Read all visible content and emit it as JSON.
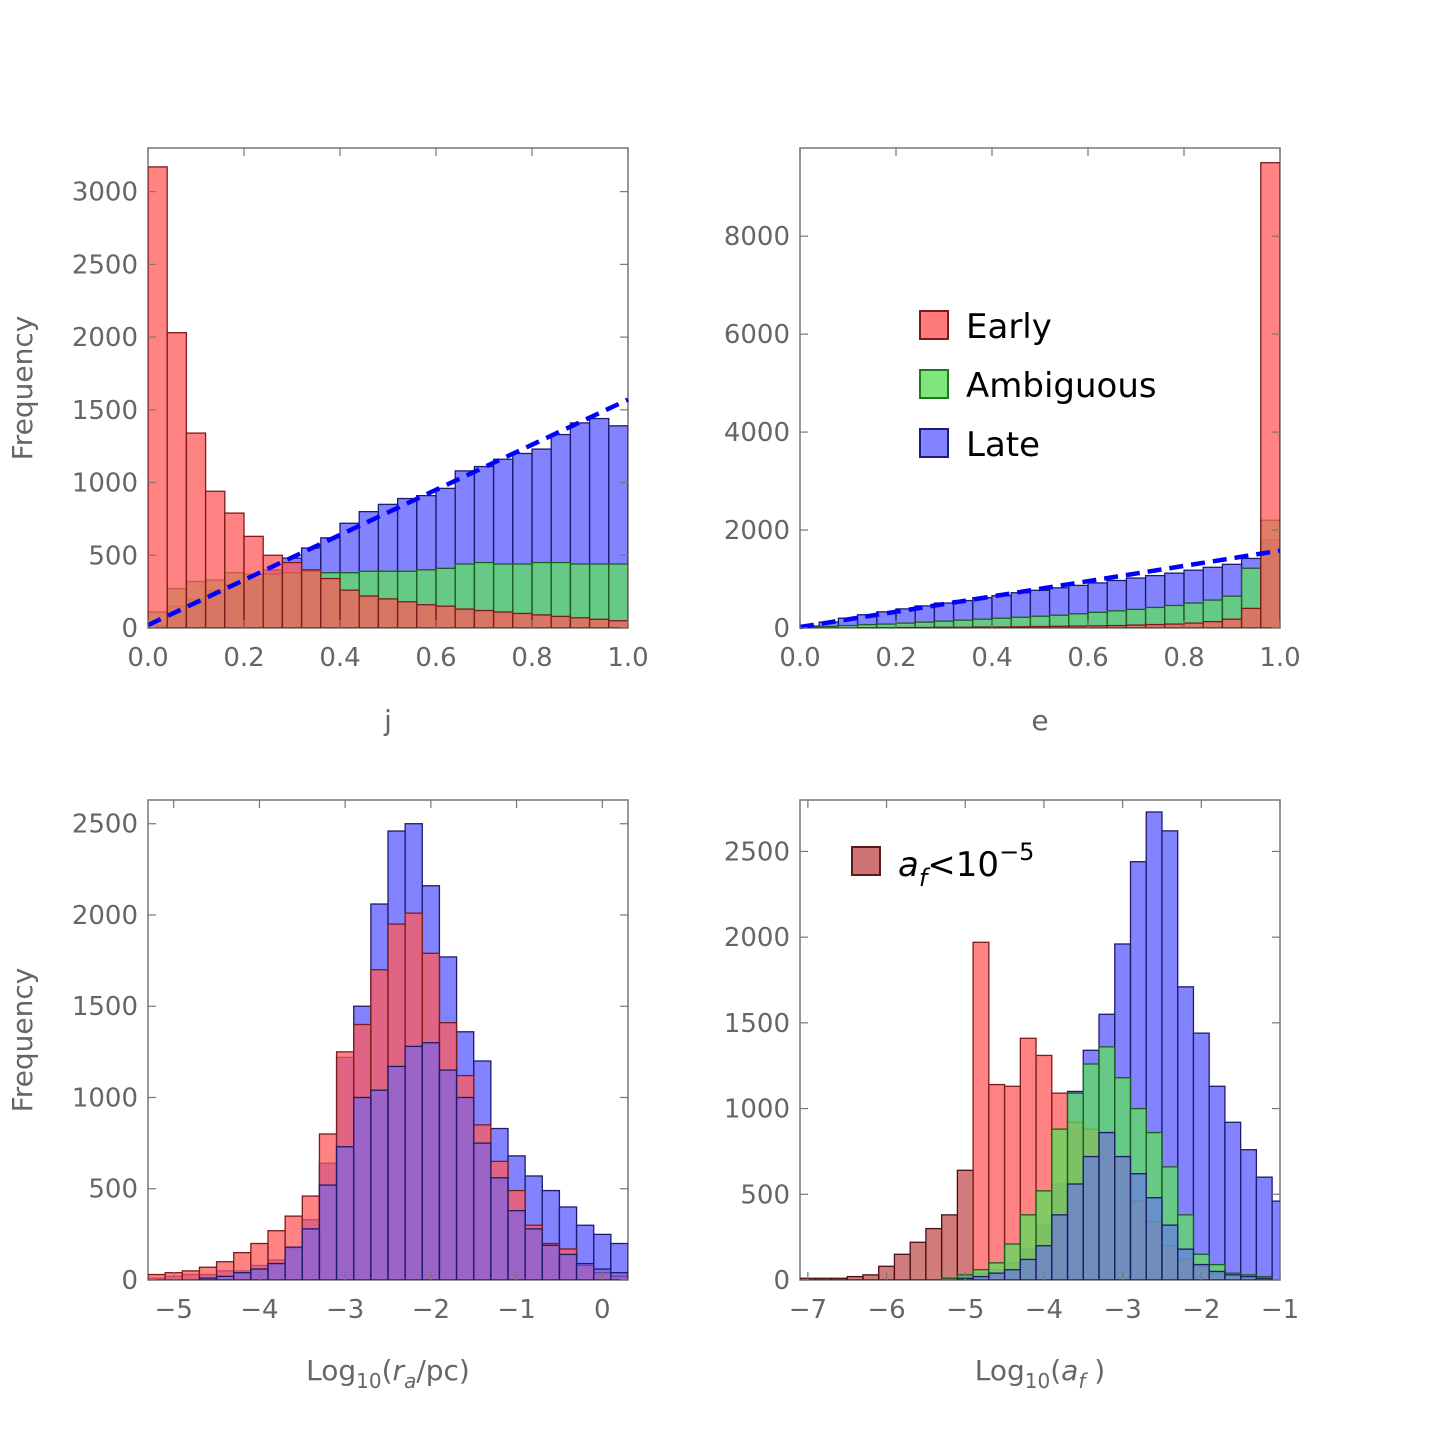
{
  "colors": {
    "early": "#ff5a5a",
    "ambiguous": "#5ce05c",
    "late": "#6464ff",
    "af_small": "#c05050",
    "dashed_fit": "#0000ff",
    "axes": "#777777"
  },
  "chart_data": [
    {
      "id": "j",
      "type": "bar",
      "xlabel": "j",
      "ylabel": "Frequency",
      "xlim": [
        0.0,
        1.0
      ],
      "ylim": [
        0,
        3300
      ],
      "xticks": [
        "0.0",
        "0.2",
        "0.4",
        "0.6",
        "0.8",
        "1.0"
      ],
      "yticks": [
        "0",
        "500",
        "1000",
        "1500",
        "2000",
        "2500",
        "3000"
      ],
      "bin_start": 0.0,
      "bin_width": 0.04,
      "series": [
        {
          "name": "Late",
          "color_key": "late",
          "values": [
            20,
            150,
            200,
            260,
            300,
            330,
            400,
            480,
            550,
            620,
            720,
            800,
            850,
            890,
            910,
            960,
            1080,
            1110,
            1160,
            1200,
            1230,
            1330,
            1410,
            1440,
            1390
          ]
        },
        {
          "name": "Ambiguous",
          "color_key": "ambiguous",
          "values": [
            110,
            270,
            320,
            330,
            380,
            370,
            370,
            380,
            390,
            380,
            380,
            390,
            390,
            390,
            400,
            410,
            440,
            450,
            440,
            440,
            450,
            450,
            440,
            440,
            440
          ]
        },
        {
          "name": "Early",
          "color_key": "early",
          "values": [
            3170,
            2030,
            1340,
            940,
            790,
            630,
            500,
            450,
            400,
            340,
            260,
            220,
            200,
            180,
            160,
            150,
            130,
            120,
            110,
            100,
            90,
            80,
            70,
            60,
            50
          ]
        }
      ],
      "fit_line": {
        "style": "dashed",
        "color_key": "dashed_fit",
        "x": [
          0.0,
          1.0
        ],
        "y": [
          20,
          1570
        ]
      }
    },
    {
      "id": "e",
      "type": "bar",
      "xlabel": "e",
      "ylabel": "",
      "xlim": [
        0.0,
        1.0
      ],
      "ylim": [
        0,
        9800
      ],
      "xticks": [
        "0.0",
        "0.2",
        "0.4",
        "0.6",
        "0.8",
        "1.0"
      ],
      "yticks": [
        "0",
        "2000",
        "4000",
        "6000",
        "8000"
      ],
      "bin_start": 0.0,
      "bin_width": 0.04,
      "series": [
        {
          "name": "Late",
          "color_key": "late",
          "values": [
            40,
            120,
            200,
            270,
            330,
            390,
            450,
            510,
            560,
            620,
            660,
            720,
            770,
            820,
            870,
            920,
            970,
            1020,
            1070,
            1120,
            1180,
            1240,
            1300,
            1420,
            1800
          ]
        },
        {
          "name": "Ambiguous",
          "color_key": "ambiguous",
          "values": [
            10,
            30,
            50,
            70,
            80,
            100,
            120,
            140,
            160,
            180,
            200,
            220,
            240,
            260,
            290,
            320,
            350,
            380,
            420,
            460,
            510,
            570,
            650,
            1220,
            2200
          ]
        },
        {
          "name": "Early",
          "color_key": "early",
          "values": [
            0,
            0,
            0,
            5,
            5,
            10,
            10,
            15,
            15,
            20,
            20,
            25,
            30,
            35,
            40,
            45,
            50,
            60,
            70,
            80,
            100,
            130,
            180,
            400,
            9500
          ]
        }
      ],
      "fit_line": {
        "style": "dashed",
        "color_key": "dashed_fit",
        "x": [
          0.0,
          1.0
        ],
        "y": [
          20,
          1580
        ]
      },
      "legend": {
        "position": "center",
        "entries": [
          {
            "label": "Early",
            "color_key": "early"
          },
          {
            "label": "Ambiguous",
            "color_key": "ambiguous"
          },
          {
            "label": "Late",
            "color_key": "late"
          }
        ]
      }
    },
    {
      "id": "ra",
      "type": "bar",
      "xlabel_prefix": "Log",
      "xlabel_sub": "10",
      "xlabel_open": "(",
      "xlabel_var": "r",
      "xlabel_var_sub": "a",
      "xlabel_rest": "/pc)",
      "ylabel": "Frequency",
      "xlim": [
        -5.3,
        0.3
      ],
      "ylim": [
        0,
        2630
      ],
      "xticks": [
        "−5",
        "−4",
        "−3",
        "−2",
        "−1",
        "0"
      ],
      "xtick_values": [
        -5,
        -4,
        -3,
        -2,
        -1,
        0
      ],
      "yticks": [
        "0",
        "500",
        "1000",
        "1500",
        "2000",
        "2500"
      ],
      "bin_start": -5.3,
      "bin_width": 0.2,
      "series": [
        {
          "name": "Late",
          "color_key": "late",
          "values": [
            10,
            20,
            30,
            30,
            50,
            50,
            80,
            110,
            170,
            330,
            640,
            1220,
            1500,
            2060,
            2460,
            2500,
            2160,
            1770,
            1360,
            1200,
            830,
            680,
            570,
            490,
            400,
            300,
            250,
            200
          ]
        },
        {
          "name": "Early",
          "color_key": "early",
          "values": [
            30,
            40,
            50,
            70,
            100,
            150,
            200,
            270,
            350,
            460,
            800,
            1250,
            1400,
            1700,
            1950,
            2010,
            1790,
            1410,
            1120,
            850,
            650,
            490,
            300,
            200,
            170,
            80,
            40,
            20
          ]
        },
        {
          "name": "",
          "color_key": "late",
          "values": [
            0,
            0,
            0,
            10,
            20,
            40,
            60,
            90,
            180,
            280,
            520,
            730,
            1000,
            1040,
            1170,
            1280,
            1300,
            1150,
            1000,
            750,
            560,
            380,
            280,
            190,
            140,
            90,
            60,
            40
          ]
        }
      ]
    },
    {
      "id": "af",
      "type": "bar",
      "xlabel_prefix": "Log",
      "xlabel_sub": "10",
      "xlabel_open": "(",
      "xlabel_var": "a",
      "xlabel_var_sub": "f",
      "xlabel_rest": " )",
      "ylabel": "",
      "xlim": [
        -7.1,
        -1.0
      ],
      "ylim": [
        0,
        2800
      ],
      "xticks": [
        "−7",
        "−6",
        "−5",
        "−4",
        "−3",
        "−2",
        "−1"
      ],
      "xtick_values": [
        -7,
        -6,
        -5,
        -4,
        -3,
        -2,
        -1
      ],
      "yticks": [
        "0",
        "500",
        "1000",
        "1500",
        "2000",
        "2500"
      ],
      "bin_start": -7.1,
      "bin_width": 0.2,
      "series": [
        {
          "name": "Late",
          "color_key": "late",
          "values": [
            0,
            0,
            0,
            0,
            0,
            0,
            0,
            0,
            0,
            10,
            20,
            40,
            60,
            100,
            180,
            320,
            560,
            1100,
            1340,
            1550,
            1960,
            2440,
            2730,
            2620,
            1710,
            1440,
            1130,
            920,
            760,
            600,
            460,
            380,
            300,
            260
          ]
        },
        {
          "name": "a_f<10^-5",
          "color_key": "af_small",
          "values": [
            10,
            10,
            10,
            20,
            30,
            80,
            150,
            220,
            300,
            380,
            640,
            0,
            0,
            0,
            0,
            0,
            0,
            0,
            0,
            0,
            0,
            0,
            0,
            0,
            0,
            0,
            0,
            0,
            0,
            0,
            0,
            0,
            0,
            0
          ]
        },
        {
          "name": "Early",
          "color_key": "early",
          "values": [
            0,
            0,
            0,
            0,
            0,
            0,
            0,
            0,
            0,
            0,
            0,
            1970,
            1140,
            1130,
            1410,
            1310,
            1090,
            920,
            880,
            860,
            720,
            460,
            340,
            200,
            120,
            80,
            40,
            30,
            20,
            10,
            0,
            0,
            0,
            0
          ]
        },
        {
          "name": "Ambiguous",
          "color_key": "ambiguous",
          "values": [
            0,
            0,
            0,
            0,
            0,
            0,
            0,
            0,
            0,
            10,
            30,
            60,
            100,
            210,
            380,
            520,
            880,
            1090,
            1260,
            1360,
            1180,
            1000,
            860,
            660,
            380,
            150,
            90,
            40,
            30,
            20,
            0,
            0,
            0,
            0
          ]
        },
        {
          "name": "",
          "color_key": "late",
          "values": [
            0,
            0,
            0,
            0,
            0,
            0,
            0,
            0,
            0,
            0,
            10,
            20,
            40,
            60,
            120,
            200,
            380,
            560,
            720,
            860,
            720,
            620,
            480,
            320,
            180,
            90,
            50,
            30,
            20,
            10,
            0,
            0,
            0,
            0
          ]
        }
      ],
      "legend": {
        "position": "top-left",
        "entries": [
          {
            "label_var": "a",
            "label_var_sub": "f",
            "label_rest": "<10",
            "label_sup": "−5",
            "color_key": "af_small"
          }
        ]
      }
    }
  ]
}
